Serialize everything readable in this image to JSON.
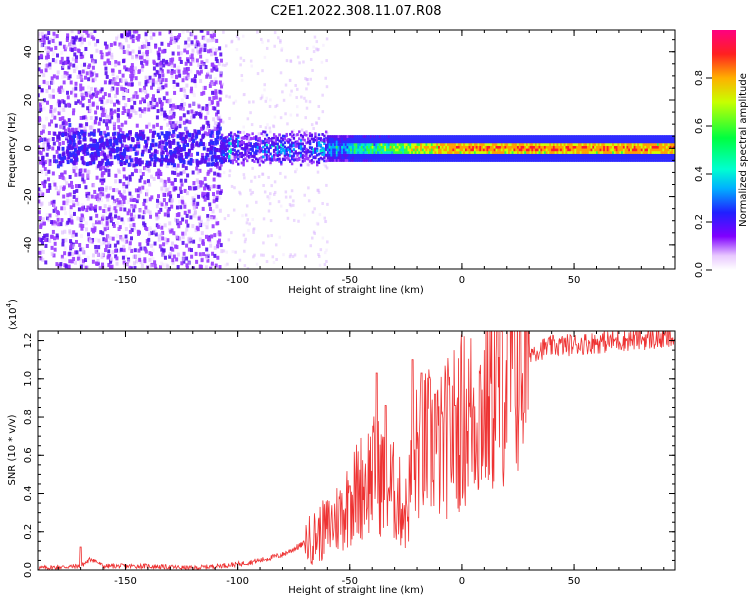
{
  "title": "C2E1.2022.308.11.07.R08",
  "colors": {
    "snr_line": "#ee3333",
    "axis": "#000000",
    "background": "#ffffff"
  },
  "chart_data": [
    {
      "type": "heatmap",
      "xlabel": "Height of straight line (km)",
      "ylabel": "Frequency (Hz)",
      "xlim": [
        -189,
        95
      ],
      "ylim": [
        -50,
        49
      ],
      "xticks": [
        -150,
        -100,
        -50,
        0,
        50
      ],
      "yticks": [
        -40,
        -20,
        0,
        20,
        40
      ],
      "colorbar": {
        "label": "Normalized spectral amplitude",
        "range": [
          0,
          1
        ],
        "ticks": [
          0.0,
          0.2,
          0.4,
          0.6,
          0.8
        ],
        "colormap": "rainbow (white/purple low → blue → cyan → green → yellow → red high)"
      },
      "description_of_structure": {
        "signal_band_center_hz": 0,
        "signal_band_halfwidth_hz": 4,
        "noise_region_km": [
          -189,
          -107
        ],
        "transition_region_km": [
          -107,
          -60
        ],
        "strong_region_km": [
          -60,
          95
        ]
      }
    },
    {
      "type": "line",
      "xlabel": "Height of straight line (km)",
      "ylabel": "SNR (10 * v/v)",
      "scale_label": "(x10",
      "scale_exponent": "4",
      "scale_close": ")",
      "xlim": [
        -189,
        95
      ],
      "ylim": [
        0,
        1.25
      ],
      "xticks": [
        -150,
        -100,
        -50,
        0,
        50
      ],
      "yticks": [
        0.0,
        0.2,
        0.4,
        0.6,
        0.8,
        1.0,
        1.2
      ],
      "ytick_labels": [
        "0.0",
        "0.2",
        "0.4",
        "0.6",
        "0.8",
        "1.0",
        "1.2"
      ],
      "series": [
        {
          "x": [
            -189,
            -170,
            -165,
            -160,
            -140,
            -120,
            -100,
            -90,
            -80,
            -70,
            -60,
            -55,
            -50,
            -45,
            -40,
            -35,
            -30,
            -25,
            -20,
            -15,
            -10,
            -5,
            0,
            5,
            10,
            15,
            20,
            25,
            30,
            40,
            50,
            60,
            70,
            80,
            90,
            95
          ],
          "values": [
            0.01,
            0.02,
            0.06,
            0.02,
            0.02,
            0.01,
            0.03,
            0.05,
            0.08,
            0.14,
            0.22,
            0.28,
            0.36,
            0.44,
            0.5,
            0.48,
            0.4,
            0.3,
            0.62,
            0.66,
            0.62,
            0.72,
            0.78,
            0.82,
            0.86,
            0.95,
            1.04,
            1.1,
            1.14,
            1.17,
            1.18,
            1.19,
            1.2,
            1.21,
            1.21,
            1.21
          ],
          "spikes": [
            {
              "x": -170,
              "y": 0.12
            },
            {
              "x": -50,
              "y": 0.44
            },
            {
              "x": -38,
              "y": 1.03
            },
            {
              "x": -34,
              "y": 0.86
            },
            {
              "x": -22,
              "y": 1.1
            },
            {
              "x": -18,
              "y": 1.03
            },
            {
              "x": -12,
              "y": 0.92
            },
            {
              "x": -3,
              "y": 0.86
            }
          ]
        }
      ]
    }
  ]
}
